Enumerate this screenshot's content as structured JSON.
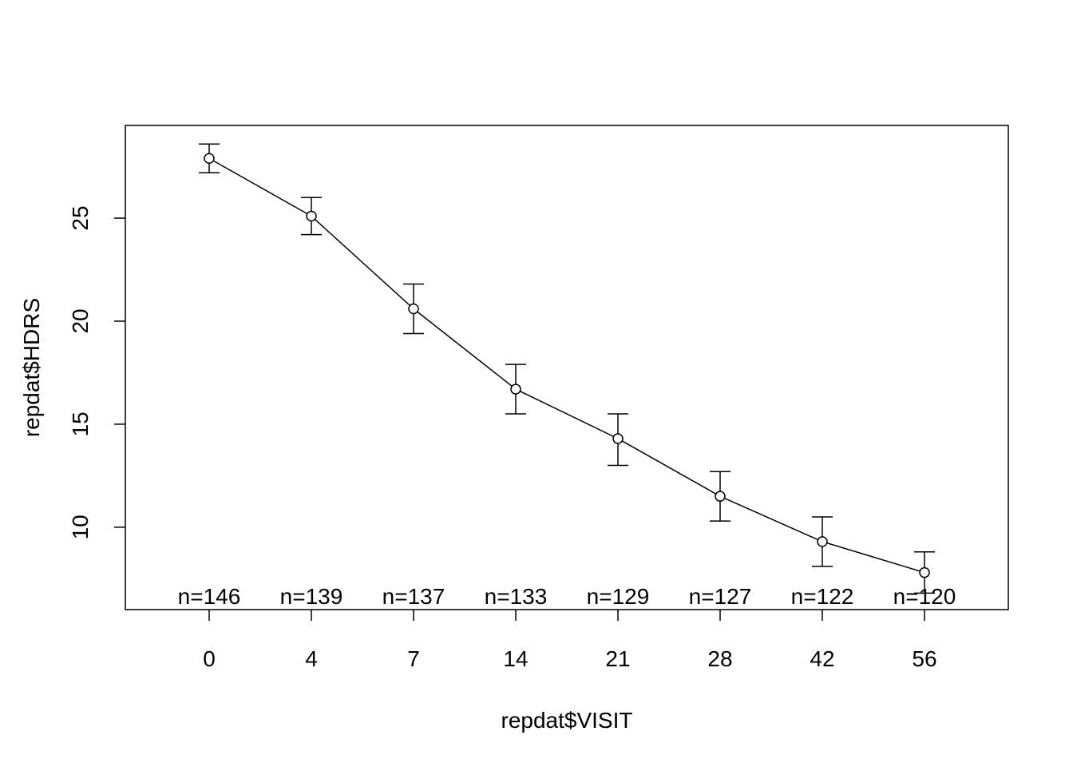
{
  "chart_data": {
    "type": "line",
    "title": "",
    "xlabel": "repdat$VISIT",
    "ylabel": "repdat$HDRS",
    "x_tick_labels": [
      "0",
      "4",
      "7",
      "14",
      "21",
      "28",
      "42",
      "56"
    ],
    "y_ticks": [
      10,
      15,
      20,
      25
    ],
    "ylim": [
      6.0,
      29.5
    ],
    "grid": false,
    "legend": "none",
    "series": [
      {
        "categories": [
          "0",
          "4",
          "7",
          "14",
          "21",
          "28",
          "42",
          "56"
        ],
        "means": [
          27.9,
          25.1,
          20.6,
          16.7,
          14.3,
          11.5,
          9.3,
          7.8
        ],
        "lower": [
          27.2,
          24.2,
          19.4,
          15.5,
          13.0,
          10.3,
          8.1,
          6.8
        ],
        "upper": [
          28.6,
          26.0,
          21.8,
          17.9,
          15.5,
          12.7,
          10.5,
          8.8
        ],
        "counts": [
          "n=146",
          "n=139",
          "n=137",
          "n=133",
          "n=129",
          "n=127",
          "n=122",
          "n=120"
        ]
      }
    ],
    "colors": {
      "line": "#000000",
      "frame": "#000000"
    }
  }
}
